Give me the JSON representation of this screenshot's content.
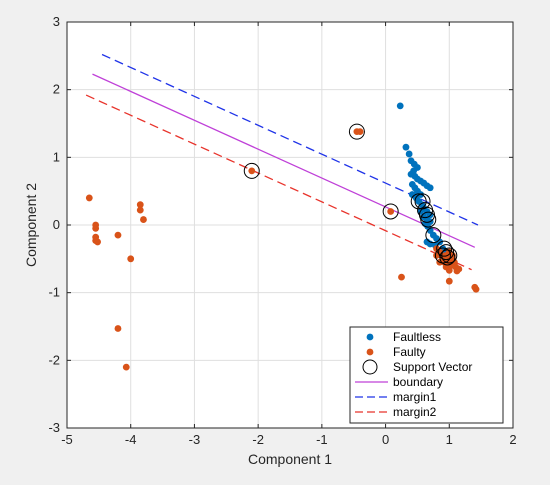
{
  "chart_data": {
    "type": "scatter",
    "title": "",
    "xlabel": "Component 1",
    "ylabel": "Component 2",
    "xlim": [
      -5,
      2
    ],
    "ylim": [
      -3,
      3
    ],
    "xticks": [
      -5,
      -4,
      -3,
      -2,
      -1,
      0,
      1,
      2
    ],
    "yticks": [
      -3,
      -2,
      -1,
      0,
      1,
      2,
      3
    ],
    "grid": true,
    "legend_position": "bottom-right",
    "series": [
      {
        "name": "Faultless",
        "kind": "scatter",
        "color": "#0072BD",
        "points": [
          [
            0.23,
            1.76
          ],
          [
            0.32,
            1.15
          ],
          [
            0.37,
            1.05
          ],
          [
            0.4,
            0.95
          ],
          [
            0.45,
            0.9
          ],
          [
            0.5,
            0.85
          ],
          [
            0.44,
            0.8
          ],
          [
            0.4,
            0.75
          ],
          [
            0.46,
            0.72
          ],
          [
            0.5,
            0.68
          ],
          [
            0.55,
            0.65
          ],
          [
            0.6,
            0.62
          ],
          [
            0.65,
            0.58
          ],
          [
            0.7,
            0.55
          ],
          [
            0.42,
            0.6
          ],
          [
            0.46,
            0.55
          ],
          [
            0.5,
            0.5
          ],
          [
            0.55,
            0.45
          ],
          [
            0.42,
            0.45
          ],
          [
            0.48,
            0.4
          ],
          [
            0.52,
            0.35
          ],
          [
            0.57,
            0.3
          ],
          [
            0.6,
            0.25
          ],
          [
            0.65,
            0.2
          ],
          [
            0.55,
            0.2
          ],
          [
            0.7,
            0.15
          ],
          [
            0.6,
            0.12
          ],
          [
            0.65,
            0.08
          ],
          [
            0.7,
            0.05
          ],
          [
            0.62,
            0.02
          ],
          [
            0.66,
            -0.02
          ],
          [
            0.7,
            -0.08
          ],
          [
            0.75,
            -0.15
          ],
          [
            0.8,
            -0.2
          ],
          [
            0.85,
            -0.25
          ],
          [
            0.7,
            -0.28
          ],
          [
            0.78,
            -0.3
          ],
          [
            0.9,
            -0.35
          ],
          [
            0.95,
            -0.4
          ],
          [
            1.0,
            -0.45
          ],
          [
            0.88,
            -0.45
          ],
          [
            0.93,
            -0.5
          ],
          [
            0.98,
            -0.55
          ],
          [
            0.85,
            -0.4
          ],
          [
            0.65,
            -0.25
          ]
        ]
      },
      {
        "name": "Faulty",
        "kind": "scatter",
        "color": "#D95319",
        "points": [
          [
            -4.65,
            0.4
          ],
          [
            -4.55,
            0.0
          ],
          [
            -4.55,
            -0.05
          ],
          [
            -4.55,
            -0.18
          ],
          [
            -4.55,
            -0.23
          ],
          [
            -4.52,
            -0.25
          ],
          [
            -4.2,
            -0.15
          ],
          [
            -4.0,
            -0.5
          ],
          [
            -3.85,
            0.3
          ],
          [
            -3.85,
            0.22
          ],
          [
            -3.8,
            0.08
          ],
          [
            -4.2,
            -1.53
          ],
          [
            -4.07,
            -2.1
          ],
          [
            -2.1,
            0.8
          ],
          [
            -0.45,
            1.38
          ],
          [
            -0.4,
            1.38
          ],
          [
            0.08,
            0.2
          ],
          [
            0.25,
            -0.77
          ],
          [
            0.8,
            -0.35
          ],
          [
            0.85,
            -0.4
          ],
          [
            0.88,
            -0.45
          ],
          [
            0.9,
            -0.5
          ],
          [
            0.92,
            -0.55
          ],
          [
            0.95,
            -0.45
          ],
          [
            0.98,
            -0.5
          ],
          [
            1.0,
            -0.55
          ],
          [
            1.02,
            -0.6
          ],
          [
            1.05,
            -0.5
          ],
          [
            1.08,
            -0.55
          ],
          [
            1.1,
            -0.62
          ],
          [
            1.12,
            -0.68
          ],
          [
            0.95,
            -0.62
          ],
          [
            1.0,
            -0.67
          ],
          [
            1.15,
            -0.65
          ],
          [
            0.85,
            -0.55
          ],
          [
            0.8,
            -0.45
          ],
          [
            1.0,
            -0.4
          ],
          [
            1.05,
            -0.45
          ],
          [
            1.4,
            -0.92
          ],
          [
            1.42,
            -0.95
          ],
          [
            1.0,
            -0.83
          ],
          [
            0.9,
            -0.48
          ]
        ]
      },
      {
        "name": "Support Vector",
        "kind": "circle",
        "color": "#000000",
        "points": [
          [
            -2.1,
            0.8
          ],
          [
            -0.45,
            1.38
          ],
          [
            0.08,
            0.2
          ],
          [
            0.52,
            0.35
          ],
          [
            0.58,
            0.35
          ],
          [
            0.62,
            0.22
          ],
          [
            0.65,
            0.15
          ],
          [
            0.67,
            0.08
          ],
          [
            0.75,
            -0.15
          ],
          [
            0.92,
            -0.35
          ],
          [
            0.95,
            -0.4
          ],
          [
            0.9,
            -0.45
          ],
          [
            0.97,
            -0.48
          ],
          [
            1.0,
            -0.45
          ]
        ]
      },
      {
        "name": "boundary",
        "kind": "line",
        "color": "#BF40D8",
        "dash": "solid",
        "points": [
          [
            -4.6,
            2.23
          ],
          [
            1.4,
            -0.33
          ]
        ]
      },
      {
        "name": "margin1",
        "kind": "line",
        "color": "#1F33E8",
        "dash": "dashed",
        "points": [
          [
            -4.45,
            2.52
          ],
          [
            1.45,
            0.0
          ]
        ]
      },
      {
        "name": "margin2",
        "kind": "line",
        "color": "#E8332B",
        "dash": "dashed",
        "points": [
          [
            -4.7,
            1.92
          ],
          [
            1.35,
            -0.66
          ]
        ]
      }
    ]
  }
}
